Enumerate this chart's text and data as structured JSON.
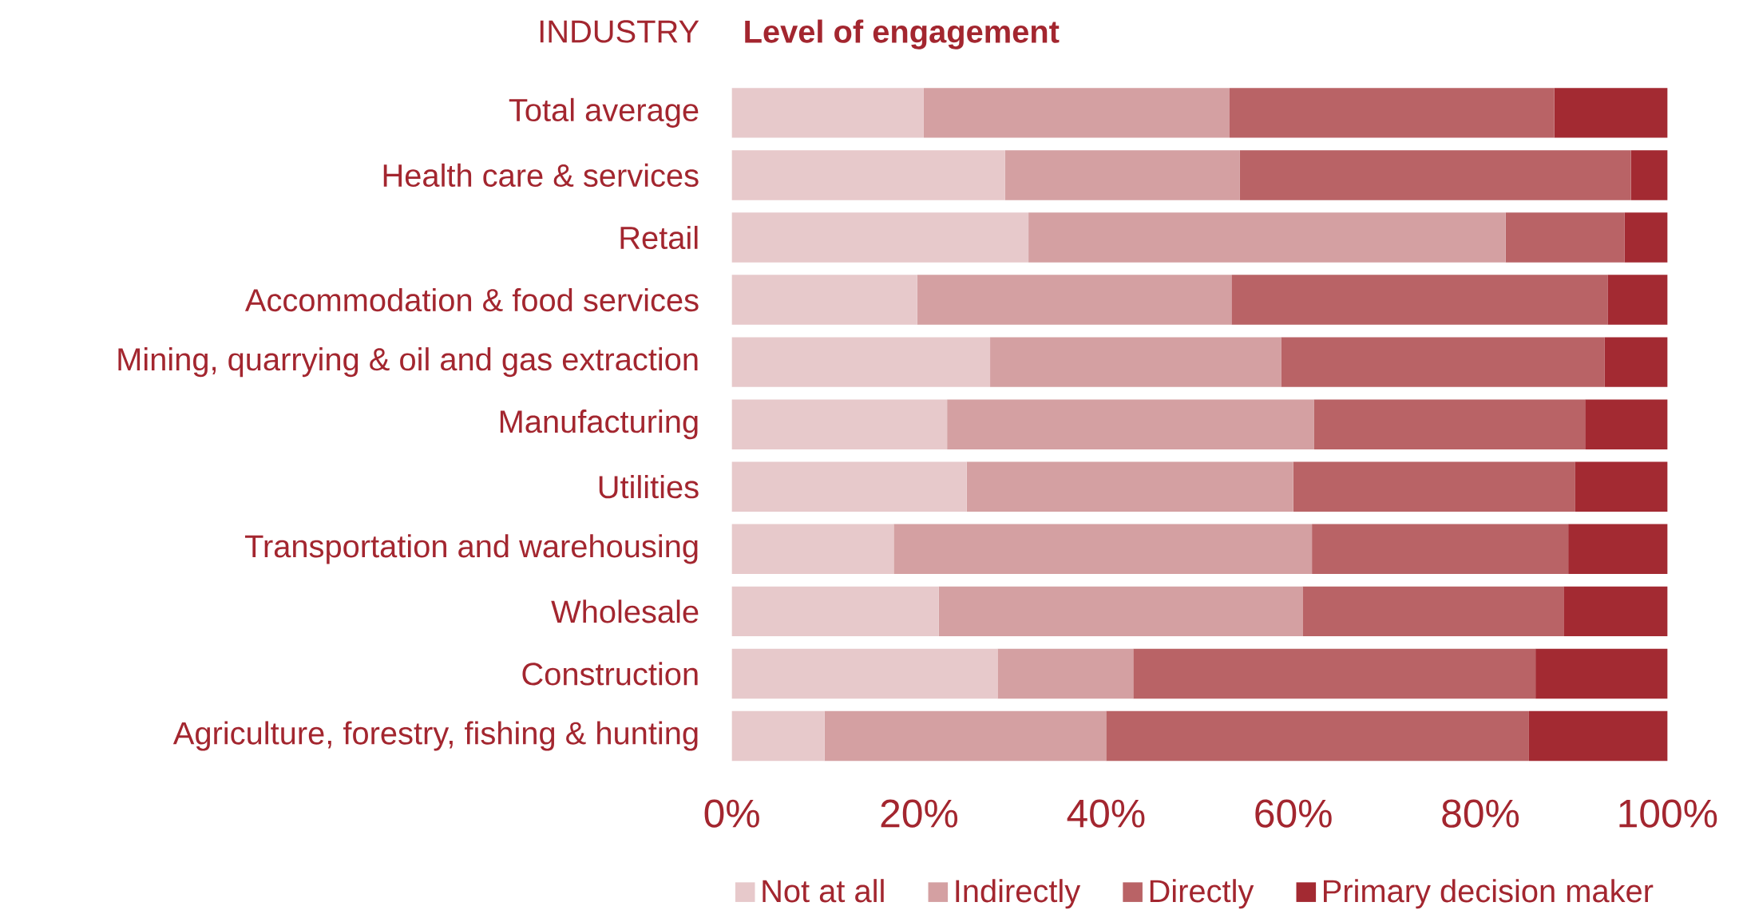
{
  "chart_data": {
    "type": "bar",
    "orientation": "horizontal",
    "stacked": true,
    "title": "Level of engagement",
    "ylabel": "INDUSTRY",
    "categories": [
      "Total average",
      "Health care & services",
      "Retail",
      "Accommodation & food services",
      "Mining, quarrying & oil and gas extraction",
      "Manufacturing",
      "Utilities",
      "Transportation and warehousing",
      "Wholesale",
      "Construction",
      "Agriculture, forestry, fishing & hunting"
    ],
    "series": [
      {
        "name": "Not at all",
        "color": "#e7c9cb",
        "values": [
          20.5,
          29.2,
          31.7,
          19.8,
          27.6,
          23.0,
          25.1,
          17.3,
          22.1,
          28.4,
          9.9
        ]
      },
      {
        "name": "Indirectly",
        "color": "#d4a0a2",
        "values": [
          32.7,
          25.1,
          51.0,
          33.6,
          31.1,
          39.2,
          34.9,
          44.7,
          38.9,
          14.5,
          30.1
        ]
      },
      {
        "name": "Directly",
        "color": "#b96366",
        "values": [
          34.7,
          41.8,
          12.7,
          40.2,
          34.6,
          29.0,
          30.1,
          27.4,
          27.9,
          43.0,
          45.2
        ]
      },
      {
        "name": "Primary decision maker",
        "color": "#a32a32",
        "values": [
          12.1,
          3.9,
          4.6,
          6.4,
          6.7,
          8.8,
          9.9,
          10.6,
          11.1,
          14.1,
          14.8
        ]
      }
    ],
    "xlim": [
      0,
      100
    ],
    "xticks": [
      {
        "value": 0,
        "label": "0%"
      },
      {
        "value": 20,
        "label": "20%"
      },
      {
        "value": 40,
        "label": "40%"
      },
      {
        "value": 60,
        "label": "60%"
      },
      {
        "value": 80,
        "label": "80%"
      },
      {
        "value": 100,
        "label": "100%"
      }
    ],
    "legend": "bottom"
  }
}
